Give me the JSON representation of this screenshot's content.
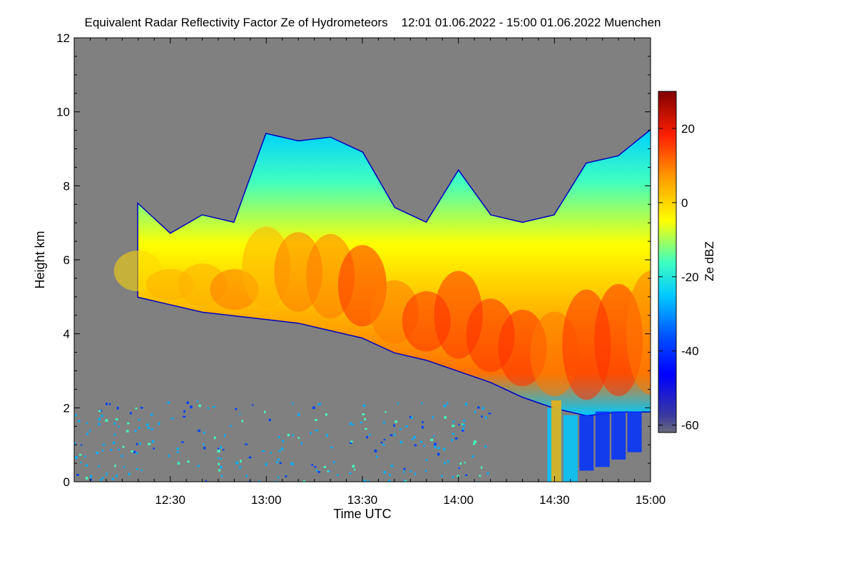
{
  "chart_data": {
    "type": "heatmap",
    "title": "Equivalent Radar Reflectivity Factor Ze of Hydrometeors",
    "subtitle": "12:01 01.06.2022 - 15:00 01.06.2022 Muenchen",
    "xlabel": "Time UTC",
    "ylabel": "Height km",
    "x_ticks": [
      "12:30",
      "13:00",
      "13:30",
      "14:00",
      "14:30",
      "15:00"
    ],
    "x_tick_minutes": [
      30,
      60,
      90,
      120,
      150,
      180
    ],
    "xlim_minutes": [
      0,
      180
    ],
    "y_ticks": [
      0,
      2,
      4,
      6,
      8,
      10,
      12
    ],
    "ylim": [
      0,
      12
    ],
    "colorbar": {
      "label": "Ze dBZ",
      "ticks": [
        20,
        0,
        -20,
        -40,
        -60
      ],
      "range": [
        -62,
        30
      ],
      "colormap": "jet",
      "background_color": "#808080"
    },
    "cloud_profile": {
      "time_minutes": [
        0,
        10,
        20,
        30,
        40,
        50,
        60,
        70,
        80,
        90,
        100,
        110,
        120,
        130,
        140,
        150,
        160,
        170,
        180
      ],
      "base_km": [
        null,
        null,
        5.0,
        4.8,
        4.6,
        4.5,
        4.4,
        4.3,
        4.1,
        3.9,
        3.5,
        3.3,
        3.0,
        2.7,
        2.3,
        2.0,
        1.8,
        1.9,
        1.9
      ],
      "top_km": [
        null,
        null,
        7.5,
        6.7,
        7.2,
        7.0,
        9.4,
        9.2,
        9.3,
        8.9,
        7.4,
        7.0,
        8.4,
        7.2,
        7.0,
        7.2,
        8.6,
        8.8,
        9.5
      ],
      "max_dbz": [
        null,
        null,
        -5,
        5,
        8,
        10,
        8,
        10,
        12,
        16,
        14,
        16,
        20,
        18,
        16,
        14,
        16,
        15,
        12
      ]
    }
  }
}
